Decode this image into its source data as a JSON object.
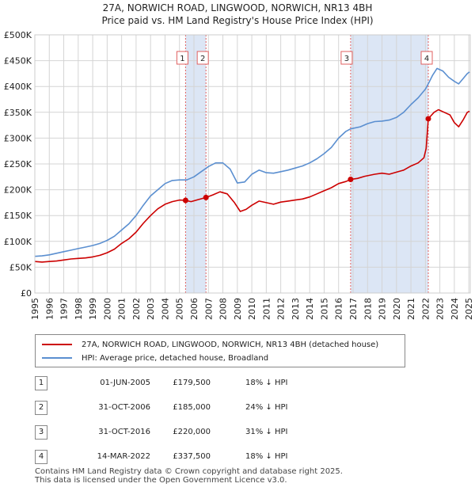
{
  "title_line1": "27A, NORWICH ROAD, LINGWOOD, NORWICH, NR13 4BH",
  "title_line2": "Price paid vs. HM Land Registry's House Price Index (HPI)",
  "colors": {
    "property": "#cc0000",
    "hpi": "#5b8fd0",
    "band": "#dce6f5",
    "marker_line": "#e06060"
  },
  "chart_data": {
    "type": "line",
    "title": "27A, NORWICH ROAD, LINGWOOD, NORWICH, NR13 4BH",
    "subtitle": "Price paid vs. HM Land Registry's House Price Index (HPI)",
    "xlabel": "",
    "ylabel": "",
    "xlim": [
      1995,
      2025.1
    ],
    "ylim": [
      0,
      500000
    ],
    "xticks": [
      1995,
      1996,
      1997,
      1998,
      1999,
      2000,
      2001,
      2002,
      2003,
      2004,
      2005,
      2006,
      2007,
      2008,
      2009,
      2010,
      2011,
      2012,
      2013,
      2014,
      2015,
      2016,
      2017,
      2018,
      2019,
      2020,
      2021,
      2022,
      2023,
      2024,
      2025
    ],
    "xtick_labels": [
      "1995",
      "1996",
      "1997",
      "1998",
      "1999",
      "2000",
      "2001",
      "2002",
      "2003",
      "2004",
      "2005",
      "2006",
      "2007",
      "2008",
      "2009",
      "2010",
      "2011",
      "2012",
      "2013",
      "2014",
      "2015",
      "2016",
      "2017",
      "2018",
      "2019",
      "2020",
      "2021",
      "2022",
      "2023",
      "2024",
      "2025"
    ],
    "yticks": [
      0,
      50000,
      100000,
      150000,
      200000,
      250000,
      300000,
      350000,
      400000,
      450000,
      500000
    ],
    "ytick_labels": [
      "£0",
      "£50K",
      "£100K",
      "£150K",
      "£200K",
      "£250K",
      "£300K",
      "£350K",
      "£400K",
      "£450K",
      "£500K"
    ],
    "grid": true,
    "shaded_ranges": [
      [
        2005.42,
        2006.83
      ],
      [
        2016.83,
        2022.2
      ]
    ],
    "series": [
      {
        "name": "27A, NORWICH ROAD, LINGWOOD, NORWICH, NR13 4BH (detached house)",
        "color": "#cc0000",
        "points": [
          [
            1995,
            61000
          ],
          [
            1995.5,
            60000
          ],
          [
            1996,
            61000
          ],
          [
            1996.5,
            62000
          ],
          [
            1997,
            64000
          ],
          [
            1997.5,
            66000
          ],
          [
            1998,
            67000
          ],
          [
            1998.5,
            68000
          ],
          [
            1999,
            70000
          ],
          [
            1999.5,
            73000
          ],
          [
            2000,
            78000
          ],
          [
            2000.5,
            85000
          ],
          [
            2001,
            96000
          ],
          [
            2001.5,
            105000
          ],
          [
            2002,
            118000
          ],
          [
            2002.5,
            135000
          ],
          [
            2003,
            150000
          ],
          [
            2003.5,
            163000
          ],
          [
            2004,
            172000
          ],
          [
            2004.5,
            177000
          ],
          [
            2005,
            180000
          ],
          [
            2005.42,
            179500
          ],
          [
            2005.8,
            177000
          ],
          [
            2006.3,
            181000
          ],
          [
            2006.83,
            185000
          ],
          [
            2007.3,
            190000
          ],
          [
            2007.8,
            196000
          ],
          [
            2008.3,
            192000
          ],
          [
            2008.8,
            175000
          ],
          [
            2009.2,
            158000
          ],
          [
            2009.6,
            162000
          ],
          [
            2010,
            170000
          ],
          [
            2010.5,
            178000
          ],
          [
            2011,
            175000
          ],
          [
            2011.5,
            172000
          ],
          [
            2012,
            176000
          ],
          [
            2012.5,
            178000
          ],
          [
            2013,
            180000
          ],
          [
            2013.5,
            182000
          ],
          [
            2014,
            186000
          ],
          [
            2014.5,
            192000
          ],
          [
            2015,
            198000
          ],
          [
            2015.5,
            204000
          ],
          [
            2016,
            212000
          ],
          [
            2016.5,
            216000
          ],
          [
            2016.83,
            220000
          ],
          [
            2017.3,
            222000
          ],
          [
            2017.8,
            226000
          ],
          [
            2018.5,
            230000
          ],
          [
            2019,
            232000
          ],
          [
            2019.5,
            230000
          ],
          [
            2020,
            234000
          ],
          [
            2020.5,
            238000
          ],
          [
            2021,
            246000
          ],
          [
            2021.5,
            252000
          ],
          [
            2021.9,
            262000
          ],
          [
            2022.05,
            280000
          ],
          [
            2022.2,
            337500
          ],
          [
            2022.6,
            350000
          ],
          [
            2022.9,
            355000
          ],
          [
            2023.3,
            350000
          ],
          [
            2023.7,
            345000
          ],
          [
            2024,
            330000
          ],
          [
            2024.3,
            322000
          ],
          [
            2024.6,
            335000
          ],
          [
            2024.9,
            350000
          ],
          [
            2025.05,
            352000
          ]
        ]
      },
      {
        "name": "HPI: Average price, detached house, Broadland",
        "color": "#5b8fd0",
        "points": [
          [
            1995,
            71000
          ],
          [
            1995.5,
            72000
          ],
          [
            1996,
            74000
          ],
          [
            1996.5,
            77000
          ],
          [
            1997,
            80000
          ],
          [
            1997.5,
            83000
          ],
          [
            1998,
            86000
          ],
          [
            1998.5,
            89000
          ],
          [
            1999,
            92000
          ],
          [
            1999.5,
            96000
          ],
          [
            2000,
            102000
          ],
          [
            2000.5,
            110000
          ],
          [
            2001,
            122000
          ],
          [
            2001.5,
            134000
          ],
          [
            2002,
            150000
          ],
          [
            2002.5,
            170000
          ],
          [
            2003,
            188000
          ],
          [
            2003.5,
            200000
          ],
          [
            2004,
            212000
          ],
          [
            2004.5,
            218000
          ],
          [
            2005,
            219000
          ],
          [
            2005.5,
            219000
          ],
          [
            2006,
            225000
          ],
          [
            2006.5,
            235000
          ],
          [
            2007,
            245000
          ],
          [
            2007.5,
            252000
          ],
          [
            2008,
            252000
          ],
          [
            2008.5,
            240000
          ],
          [
            2009,
            213000
          ],
          [
            2009.5,
            215000
          ],
          [
            2010,
            230000
          ],
          [
            2010.5,
            238000
          ],
          [
            2011,
            233000
          ],
          [
            2011.5,
            232000
          ],
          [
            2012,
            235000
          ],
          [
            2012.5,
            238000
          ],
          [
            2013,
            242000
          ],
          [
            2013.5,
            246000
          ],
          [
            2014,
            252000
          ],
          [
            2014.5,
            260000
          ],
          [
            2015,
            270000
          ],
          [
            2015.5,
            282000
          ],
          [
            2016,
            300000
          ],
          [
            2016.5,
            313000
          ],
          [
            2016.83,
            318000
          ],
          [
            2017.5,
            322000
          ],
          [
            2018,
            328000
          ],
          [
            2018.5,
            332000
          ],
          [
            2019,
            333000
          ],
          [
            2019.5,
            335000
          ],
          [
            2020,
            340000
          ],
          [
            2020.5,
            350000
          ],
          [
            2021,
            365000
          ],
          [
            2021.5,
            378000
          ],
          [
            2022,
            395000
          ],
          [
            2022.2,
            405000
          ],
          [
            2022.5,
            422000
          ],
          [
            2022.8,
            435000
          ],
          [
            2023.2,
            430000
          ],
          [
            2023.6,
            418000
          ],
          [
            2024,
            410000
          ],
          [
            2024.3,
            405000
          ],
          [
            2024.6,
            415000
          ],
          [
            2024.9,
            425000
          ],
          [
            2025.05,
            428000
          ]
        ]
      }
    ],
    "sales": [
      {
        "id": "1",
        "x": 2005.42,
        "y": 179500
      },
      {
        "id": "2",
        "x": 2006.83,
        "y": 185000
      },
      {
        "id": "3",
        "x": 2016.83,
        "y": 220000
      },
      {
        "id": "4",
        "x": 2022.2,
        "y": 337500
      }
    ]
  },
  "legend": {
    "property_label": "27A, NORWICH ROAD, LINGWOOD, NORWICH, NR13 4BH (detached house)",
    "hpi_label": "HPI: Average price, detached house, Broadland"
  },
  "transactions": [
    {
      "num": "1",
      "date": "01-JUN-2005",
      "price": "£179,500",
      "hpi": "18% ↓ HPI"
    },
    {
      "num": "2",
      "date": "31-OCT-2006",
      "price": "£185,000",
      "hpi": "24% ↓ HPI"
    },
    {
      "num": "3",
      "date": "31-OCT-2016",
      "price": "£220,000",
      "hpi": "31% ↓ HPI"
    },
    {
      "num": "4",
      "date": "14-MAR-2022",
      "price": "£337,500",
      "hpi": "18% ↓ HPI"
    }
  ],
  "footer": {
    "line1": "Contains HM Land Registry data © Crown copyright and database right 2025.",
    "line2": "This data is licensed under the Open Government Licence v3.0."
  }
}
